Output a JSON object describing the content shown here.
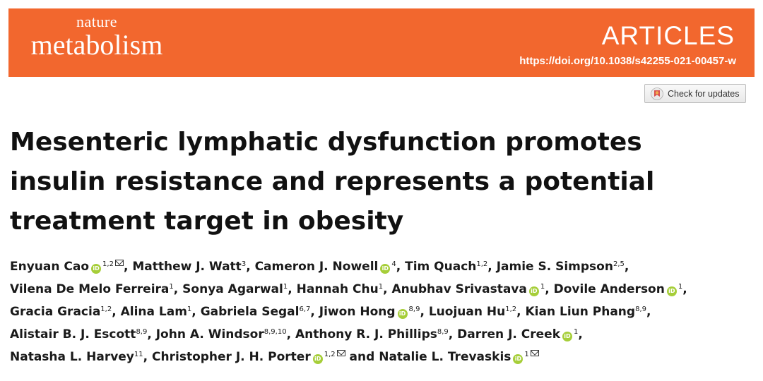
{
  "journal": {
    "line1": "nature",
    "line2": "metabolism"
  },
  "section": "ARTICLES",
  "doi": "https://doi.org/10.1038/s42255-021-00457-w",
  "check_updates": "Check for updates",
  "title": [
    "Mesenteric lymphatic dysfunction promotes",
    "insulin resistance and represents a potential",
    "treatment target in obesity"
  ],
  "authors": [
    {
      "name": "Enyuan Cao",
      "orcid": true,
      "aff": "1,2",
      "email": true,
      "sep": ", "
    },
    {
      "name": "Matthew J. Watt",
      "orcid": false,
      "aff": "3",
      "email": false,
      "sep": ", "
    },
    {
      "name": "Cameron J. Nowell",
      "orcid": true,
      "aff": "4",
      "email": false,
      "sep": ", "
    },
    {
      "name": "Tim Quach",
      "orcid": false,
      "aff": "1,2",
      "email": false,
      "sep": ", "
    },
    {
      "name": "Jamie S. Simpson",
      "orcid": false,
      "aff": "2,5",
      "email": false,
      "sep": ","
    },
    {
      "break": true
    },
    {
      "name": "Vilena De Melo Ferreira",
      "orcid": false,
      "aff": "1",
      "email": false,
      "sep": ", "
    },
    {
      "name": "Sonya Agarwal",
      "orcid": false,
      "aff": "1",
      "email": false,
      "sep": ", "
    },
    {
      "name": "Hannah Chu",
      "orcid": false,
      "aff": "1",
      "email": false,
      "sep": ", "
    },
    {
      "name": "Anubhav Srivastava",
      "orcid": true,
      "aff": "1",
      "email": false,
      "sep": ", "
    },
    {
      "name": "Dovile Anderson",
      "orcid": true,
      "aff": "1",
      "email": false,
      "sep": ","
    },
    {
      "break": true
    },
    {
      "name": "Gracia Gracia",
      "orcid": false,
      "aff": "1,2",
      "email": false,
      "sep": ", "
    },
    {
      "name": "Alina Lam",
      "orcid": false,
      "aff": "1",
      "email": false,
      "sep": ", "
    },
    {
      "name": "Gabriela Segal",
      "orcid": false,
      "aff": "6,7",
      "email": false,
      "sep": ", "
    },
    {
      "name": "Jiwon Hong",
      "orcid": true,
      "aff": "8,9",
      "email": false,
      "sep": ", "
    },
    {
      "name": "Luojuan Hu",
      "orcid": false,
      "aff": "1,2",
      "email": false,
      "sep": ", "
    },
    {
      "name": "Kian Liun Phang",
      "orcid": false,
      "aff": "8,9",
      "email": false,
      "sep": ","
    },
    {
      "break": true
    },
    {
      "name": "Alistair B. J. Escott",
      "orcid": false,
      "aff": "8,9",
      "email": false,
      "sep": ", "
    },
    {
      "name": "John A. Windsor",
      "orcid": false,
      "aff": "8,9,10",
      "email": false,
      "sep": ", "
    },
    {
      "name": "Anthony R. J. Phillips",
      "orcid": false,
      "aff": "8,9",
      "email": false,
      "sep": ", "
    },
    {
      "name": "Darren J. Creek",
      "orcid": true,
      "aff": "1",
      "email": false,
      "sep": ","
    },
    {
      "break": true
    },
    {
      "name": "Natasha L. Harvey",
      "orcid": false,
      "aff": "11",
      "email": false,
      "sep": ", "
    },
    {
      "name": "Christopher J. H. Porter",
      "orcid": true,
      "aff": "1,2",
      "email": true,
      "sep": " and "
    },
    {
      "name": "Natalie L. Trevaskis",
      "orcid": true,
      "aff": "1",
      "email": true,
      "sep": ""
    }
  ],
  "colors": {
    "banner": "#f2672e",
    "orcid": "#a6ce39"
  }
}
